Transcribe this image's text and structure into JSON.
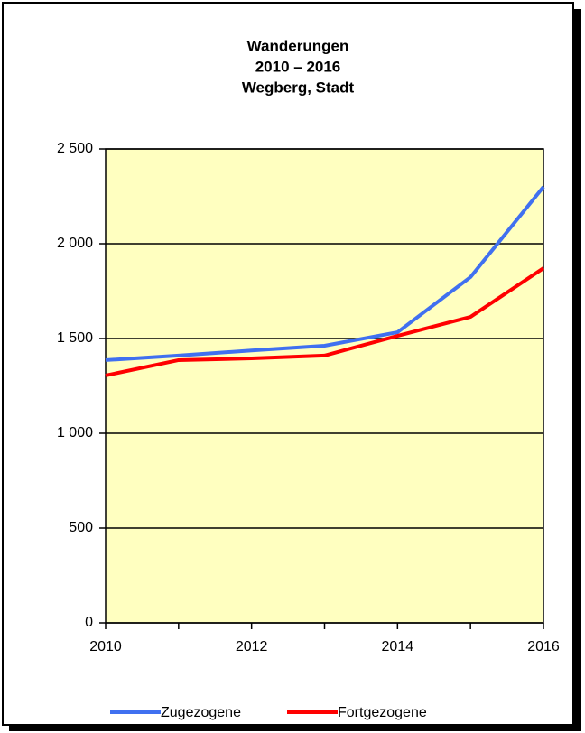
{
  "chart_data": {
    "type": "line",
    "title": [
      "Wanderungen",
      "2010 – 2016",
      "Wegberg, Stadt"
    ],
    "x": [
      2010,
      2011,
      2012,
      2013,
      2014,
      2015,
      2016
    ],
    "series": [
      {
        "name": "Zugezogene",
        "color": "#4070f0",
        "values": [
          1386,
          1410,
          1437,
          1462,
          1533,
          1824,
          2300
        ]
      },
      {
        "name": "Fortgezogene",
        "color": "#ff0000",
        "values": [
          1305,
          1386,
          1395,
          1410,
          1514,
          1614,
          1871
        ]
      }
    ],
    "xlim": [
      2010,
      2016
    ],
    "xticks": [
      2010,
      2012,
      2014,
      2016
    ],
    "xminorticks": [
      2011,
      2013,
      2015
    ],
    "ylim": [
      0,
      2500
    ],
    "yticks": [
      0,
      500,
      {
        "value": 1000,
        "label": "1 000"
      },
      {
        "value": 1500,
        "label": "1 500"
      },
      {
        "value": 2000,
        "label": "2 000"
      },
      {
        "value": 2500,
        "label": "2 500"
      }
    ],
    "grid": true,
    "legend": "bottom",
    "plot_background": "#ffffc0"
  }
}
